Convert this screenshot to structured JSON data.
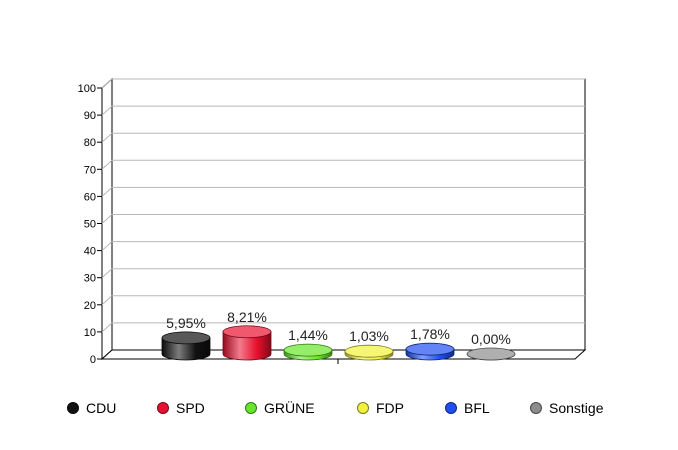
{
  "chart_data": {
    "type": "bar",
    "style": "3d-cylinder",
    "categories": [
      "CDU",
      "SPD",
      "GRÜNE",
      "FDP",
      "BFL",
      "Sonstige"
    ],
    "values": [
      5.95,
      8.21,
      1.44,
      1.03,
      1.78,
      0.0
    ],
    "value_labels": [
      "5,95%",
      "8,21%",
      "1,44%",
      "1,03%",
      "1,78%",
      "0,00%"
    ],
    "colors": [
      "#111111",
      "#e8102e",
      "#66e62a",
      "#f2f23a",
      "#1f4ff2",
      "#8c8c8c"
    ],
    "ylim": [
      0,
      100
    ],
    "yticks": [
      "0",
      "10",
      "20",
      "30",
      "40",
      "50",
      "60",
      "70",
      "80",
      "90",
      "100"
    ],
    "grid": true,
    "legend_position": "bottom"
  }
}
